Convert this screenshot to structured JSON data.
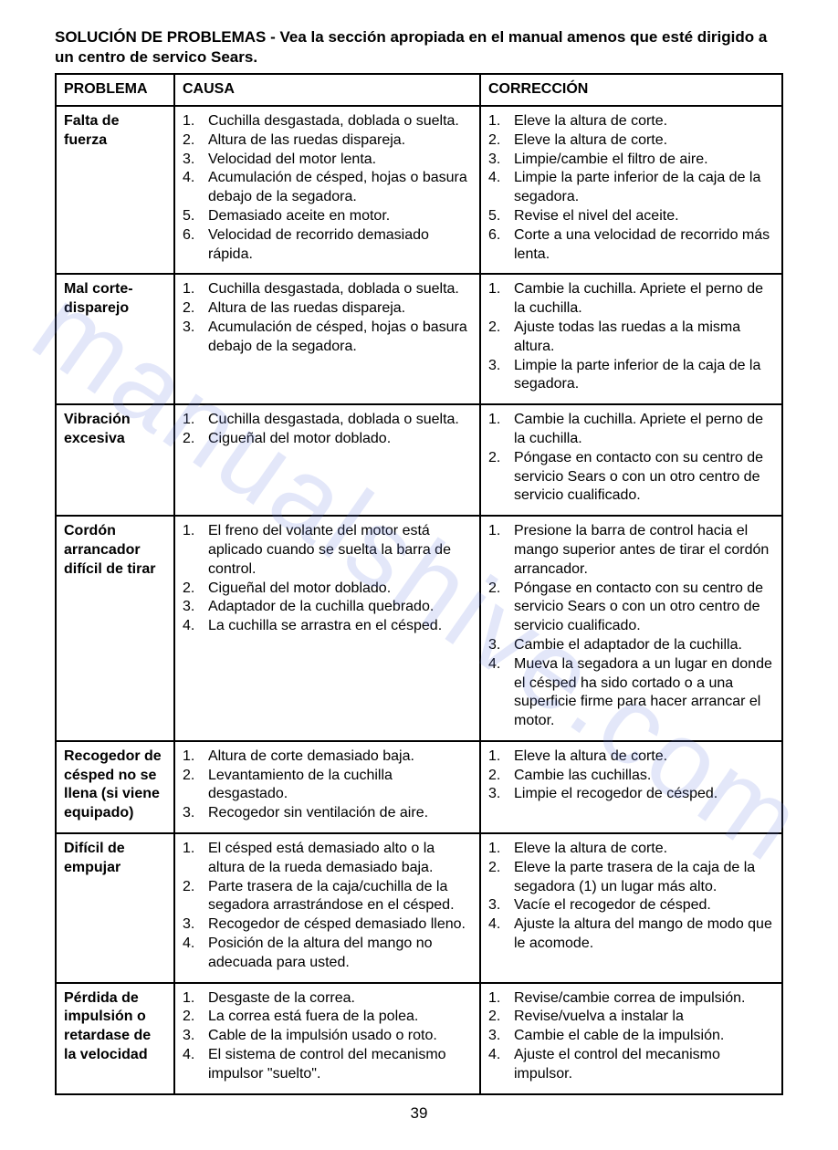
{
  "page": {
    "title": "SOLUCIÓN DE PROBLEMAS - Vea la sección apropiada en el manual amenos que esté dirigido a un centro de servico Sears.",
    "headers": {
      "problem": "PROBLEMA",
      "cause": "CAUSA",
      "correction": "CORRECCIÓN"
    },
    "rows": [
      {
        "problem": "Falta de fuerza",
        "causes": [
          "Cuchilla desgastada, doblada o suelta.",
          "Altura de las ruedas dispareja.",
          "Velocidad del motor lenta.",
          "Acumulación de césped, hojas o basura debajo de la segadora.",
          "Demasiado aceite en motor.",
          "Velocidad de recorrido demasiado rápida."
        ],
        "corrections": [
          "Eleve la altura de corte.",
          "Eleve la altura de corte.",
          "Limpie/cambie el filtro de aire.",
          "Limpie la parte inferior de la caja de la segadora.",
          "Revise el nivel del aceite.",
          "Corte a una velocidad de recorrido más lenta."
        ]
      },
      {
        "problem": "Mal corte-disparejo",
        "causes": [
          "Cuchilla desgastada, doblada o suelta.",
          "Altura de las ruedas dispareja.",
          "Acumulación de césped, hojas o basura debajo de la segadora."
        ],
        "corrections": [
          "Cambie la cuchilla. Apriete el perno de la cuchilla.",
          "Ajuste todas las ruedas a la misma altura.",
          "Limpie la parte inferior de la caja de la segadora."
        ]
      },
      {
        "problem": "Vibración excesiva",
        "causes": [
          "Cuchilla desgastada, doblada o suelta.",
          "Cigueñal del motor doblado."
        ],
        "corrections": [
          "Cambie la cuchilla. Apriete el perno de la cuchilla.",
          "Póngase en contacto con su centro de servicio Sears o con un otro centro de servicio cualificado."
        ]
      },
      {
        "problem": "Cordón arrancador difícil de tirar",
        "causes": [
          "El freno del volante del motor está aplicado cuando se suelta la barra de control.",
          "Cigueñal del motor doblado.",
          "Adaptador de la cuchilla quebrado.",
          "La cuchilla se arrastra en el césped."
        ],
        "corrections": [
          "Presione la barra de control hacia el mango superior antes de tirar el cordón arrancador.",
          "Póngase en contacto con su centro de servicio Sears o con un otro centro de servicio cualificado.",
          "Cambie el adaptador de la cuchilla.",
          "Mueva la segadora a un lugar en donde el césped ha sido cortado o a una superficie firme para hacer arrancar el motor."
        ]
      },
      {
        "problem": "Recogedor de césped no se llena (si viene equipado)",
        "causes": [
          "Altura de corte demasiado baja.",
          "Levantamiento de la cuchilla desgastado.",
          "Recogedor sin ventilación de aire."
        ],
        "corrections": [
          "Eleve la altura de corte.",
          "Cambie las cuchillas.",
          "Limpie el recogedor de césped."
        ]
      },
      {
        "problem": "Difícil de empujar",
        "causes": [
          "El césped está demasiado alto o la altura de la rueda demasiado baja.",
          "Parte trasera de la caja/cuchilla de la segadora arrastrándose en el césped.",
          "Recogedor de césped demasiado lleno.",
          "Posición de la altura del mango no adecuada para usted."
        ],
        "corrections": [
          "Eleve la altura de corte.",
          "Eleve la parte trasera de la caja de la segadora (1) un lugar más alto.",
          "Vacíe el recogedor de césped.",
          "Ajuste la altura del mango de modo que le acomode."
        ]
      },
      {
        "problem": "Pérdida de impulsión o retardase de la velocidad",
        "causes": [
          "Desgaste de la correa.",
          "La correa está fuera de la polea.",
          "Cable de la impulsión usado o roto.",
          "El sistema de control del mecanismo impulsor \"suelto\"."
        ],
        "corrections": [
          "Revise/cambie correa de impulsión.",
          "Revise/vuelva a instalar la",
          "Cambie  el cable de la impulsión.",
          "Ajuste el control del mecanismo impulsor."
        ]
      }
    ],
    "footer": "39",
    "watermark": "manualshive.com"
  }
}
